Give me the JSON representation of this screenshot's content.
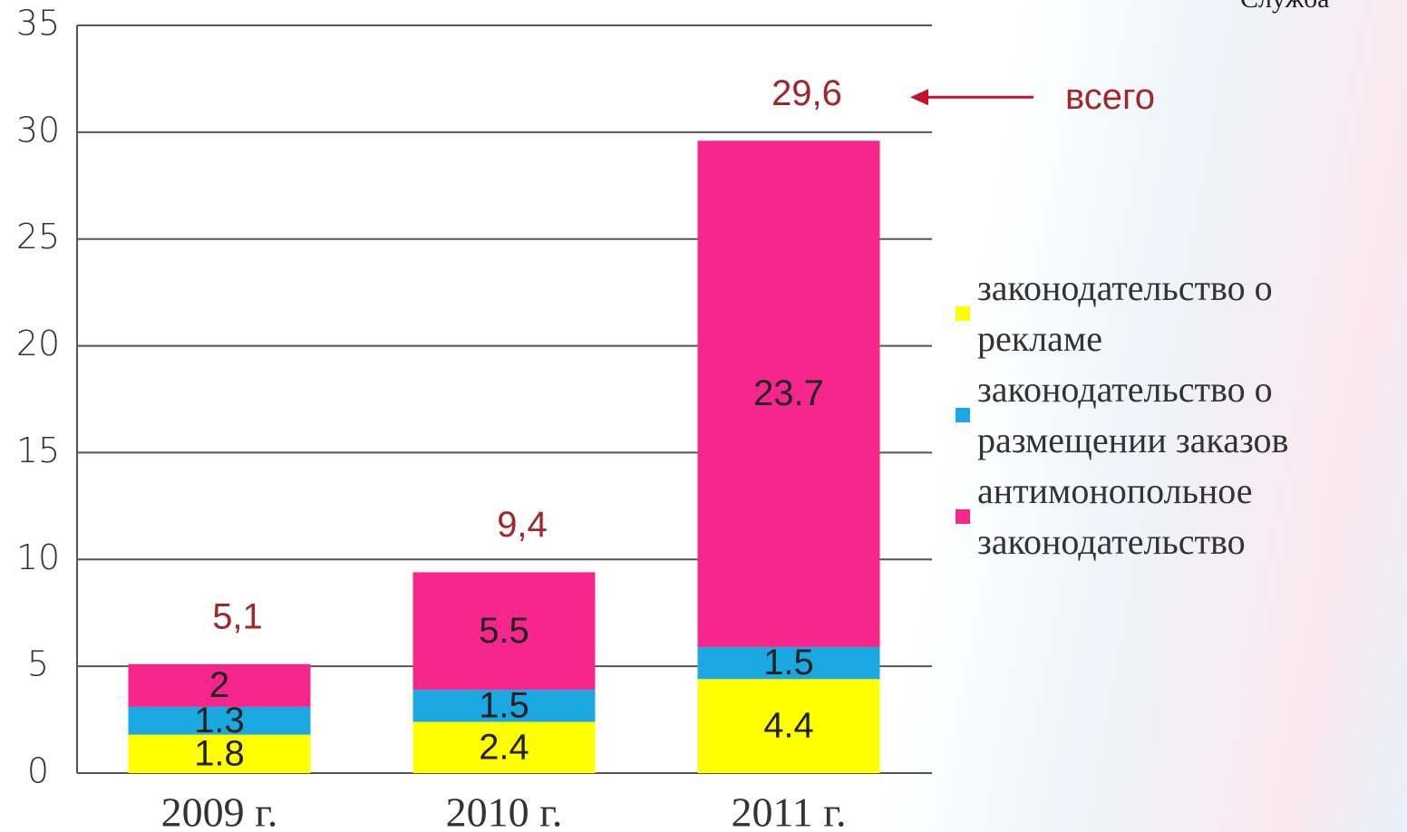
{
  "chart_data": {
    "type": "stacked_bar",
    "categories": [
      "2009 г.",
      "2010 г.",
      "2011 г."
    ],
    "series": [
      {
        "name": "законодательство о рекламе",
        "color": "#ffff00",
        "values": [
          1.8,
          2.4,
          4.4
        ]
      },
      {
        "name": "законодательство о размещении заказов",
        "color": "#1ba8e0",
        "values": [
          1.3,
          1.5,
          1.5
        ]
      },
      {
        "name": "антимонопольное законодательство",
        "color": "#f7268c",
        "values": [
          2,
          5.5,
          23.7
        ]
      }
    ],
    "totals": {
      "values": [
        5.1,
        9.4,
        29.6
      ],
      "value_labels": [
        "5,1",
        "9,4",
        "29,6"
      ]
    },
    "total_annotation": "всего",
    "logo_text": "Служба",
    "ylim": [
      0,
      35
    ],
    "yticks": [
      0,
      5,
      10,
      15,
      20,
      25,
      30,
      35
    ],
    "grid": true
  }
}
